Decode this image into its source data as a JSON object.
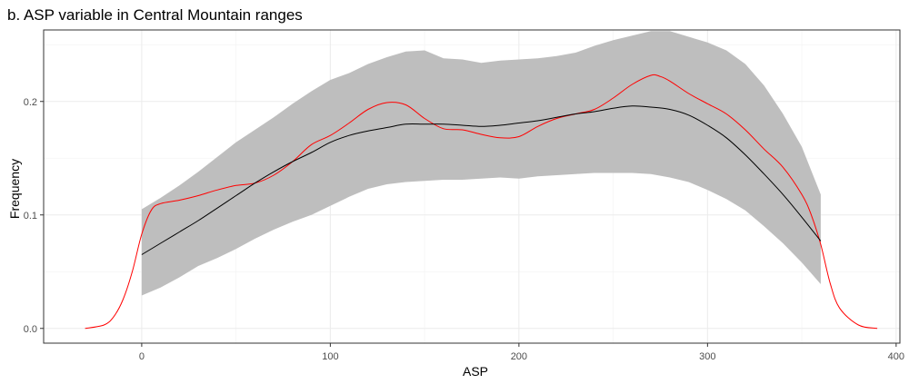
{
  "chart_data": {
    "type": "line",
    "title": "b. ASP variable in Central Mountain ranges",
    "xlabel": "ASP",
    "ylabel": "Frequency",
    "xlim": [
      -52,
      402
    ],
    "ylim": [
      -0.013,
      0.263
    ],
    "x_ticks": [
      0,
      100,
      200,
      300,
      400
    ],
    "x_tick_labels": [
      "0",
      "100",
      "200",
      "300",
      "400"
    ],
    "y_ticks": [
      0.0,
      0.1,
      0.2
    ],
    "y_tick_labels": [
      "0.0",
      "0.1",
      "0.2"
    ],
    "grid": true,
    "series": [
      {
        "color": "#ff0000",
        "kind": "density",
        "x": [
          -30,
          -20,
          -15,
          -10,
          -5,
          0,
          5,
          10,
          20,
          30,
          40,
          50,
          60,
          70,
          80,
          90,
          100,
          110,
          120,
          130,
          140,
          150,
          160,
          170,
          180,
          190,
          200,
          210,
          220,
          230,
          240,
          250,
          260,
          270,
          275,
          280,
          290,
          300,
          310,
          320,
          330,
          340,
          350,
          355,
          360,
          365,
          370,
          380,
          390
        ],
        "y": [
          0.0,
          0.003,
          0.01,
          0.025,
          0.05,
          0.083,
          0.104,
          0.11,
          0.113,
          0.117,
          0.122,
          0.126,
          0.128,
          0.135,
          0.147,
          0.162,
          0.17,
          0.181,
          0.193,
          0.199,
          0.197,
          0.185,
          0.176,
          0.175,
          0.171,
          0.168,
          0.169,
          0.178,
          0.185,
          0.189,
          0.193,
          0.203,
          0.215,
          0.223,
          0.222,
          0.218,
          0.207,
          0.198,
          0.189,
          0.175,
          0.158,
          0.142,
          0.118,
          0.1,
          0.074,
          0.04,
          0.018,
          0.003,
          0.0
        ]
      },
      {
        "color": "#000000",
        "kind": "smooth",
        "x": [
          0,
          10,
          20,
          30,
          40,
          50,
          60,
          70,
          80,
          90,
          100,
          110,
          120,
          130,
          140,
          150,
          160,
          170,
          180,
          190,
          200,
          210,
          220,
          230,
          240,
          250,
          260,
          270,
          280,
          290,
          300,
          310,
          320,
          330,
          340,
          350,
          360
        ],
        "y": [
          0.065,
          0.075,
          0.085,
          0.095,
          0.106,
          0.117,
          0.128,
          0.138,
          0.147,
          0.155,
          0.164,
          0.17,
          0.174,
          0.177,
          0.18,
          0.18,
          0.18,
          0.179,
          0.178,
          0.179,
          0.181,
          0.183,
          0.186,
          0.189,
          0.191,
          0.194,
          0.196,
          0.195,
          0.193,
          0.188,
          0.179,
          0.168,
          0.153,
          0.136,
          0.118,
          0.098,
          0.077
        ]
      }
    ],
    "ribbon": {
      "color": "#bebebe",
      "x": [
        0,
        10,
        20,
        30,
        40,
        50,
        60,
        70,
        80,
        90,
        100,
        110,
        120,
        130,
        140,
        150,
        160,
        170,
        180,
        190,
        200,
        210,
        220,
        230,
        240,
        250,
        260,
        270,
        280,
        290,
        300,
        310,
        320,
        330,
        340,
        350,
        360
      ],
      "upper": [
        0.105,
        0.115,
        0.126,
        0.138,
        0.151,
        0.164,
        0.175,
        0.186,
        0.198,
        0.209,
        0.219,
        0.225,
        0.233,
        0.239,
        0.244,
        0.245,
        0.238,
        0.237,
        0.234,
        0.236,
        0.237,
        0.238,
        0.24,
        0.243,
        0.249,
        0.254,
        0.258,
        0.262,
        0.262,
        0.257,
        0.252,
        0.245,
        0.233,
        0.214,
        0.189,
        0.16,
        0.118
      ],
      "lower": [
        0.029,
        0.036,
        0.045,
        0.055,
        0.062,
        0.07,
        0.079,
        0.087,
        0.094,
        0.1,
        0.108,
        0.116,
        0.123,
        0.127,
        0.129,
        0.13,
        0.131,
        0.131,
        0.132,
        0.133,
        0.132,
        0.134,
        0.135,
        0.136,
        0.137,
        0.137,
        0.137,
        0.136,
        0.133,
        0.129,
        0.122,
        0.114,
        0.104,
        0.09,
        0.075,
        0.058,
        0.039
      ]
    }
  }
}
